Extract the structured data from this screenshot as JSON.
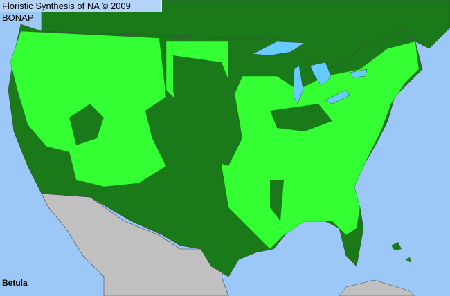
{
  "header": {
    "title": "Floristic Synthesis of NA © 2009 BONAP"
  },
  "map": {
    "taxon": "Betula",
    "colors": {
      "ocean": "#9cc8f8",
      "native_present": "#33ff33",
      "native_absent_state": "#1a7a1a",
      "outside_range": "#c0c0c0",
      "lakes": "#66ccff",
      "borders": "#444444"
    }
  }
}
